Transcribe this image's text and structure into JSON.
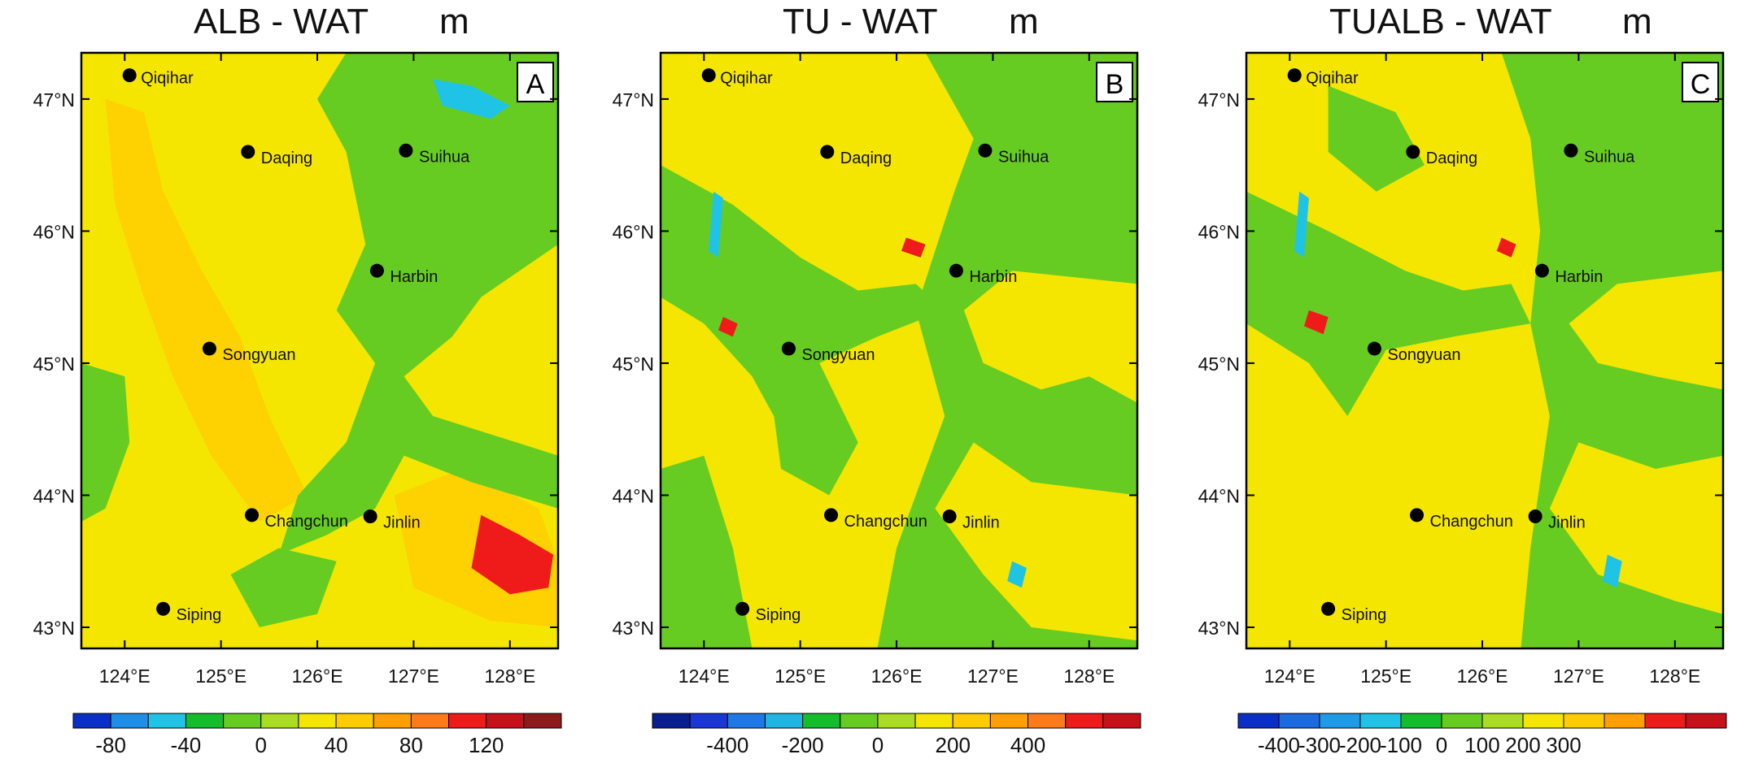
{
  "panels": [
    {
      "title": "ALB - WAT",
      "unit": "m",
      "letter": "A",
      "colorbar": {
        "colors": [
          "#0a2fc7",
          "#1e8ee6",
          "#1fc3e6",
          "#16bd2a",
          "#66cc22",
          "#aadd22",
          "#f5e600",
          "#ffcc00",
          "#ff9f00",
          "#ff7a1a",
          "#ef1a1a",
          "#c8101a",
          "#8e1b1b"
        ],
        "labels": [
          "-80",
          "-40",
          "0",
          "40",
          "80",
          "120"
        ],
        "label_slots": [
          1,
          3,
          5,
          7,
          9,
          11
        ]
      }
    },
    {
      "title": "TU - WAT",
      "unit": "m",
      "letter": "B",
      "colorbar": {
        "colors": [
          "#0a1f8f",
          "#1a36d6",
          "#1e78e6",
          "#1fb6e6",
          "#16bd2a",
          "#66cc22",
          "#aadd22",
          "#f5e600",
          "#ffcc00",
          "#ff9f00",
          "#ff7a1a",
          "#ef1a1a",
          "#c8101a"
        ],
        "labels": [
          "-400",
          "-200",
          "0",
          "200",
          "400"
        ],
        "label_slots": [
          2,
          4,
          6,
          8,
          10
        ]
      }
    },
    {
      "title": "TUALB - WAT",
      "unit": "m",
      "letter": "C",
      "colorbar": {
        "colors": [
          "#0a2fc7",
          "#1a6ae0",
          "#1e9ae6",
          "#1fc3e6",
          "#16bd2a",
          "#66cc22",
          "#aadd22",
          "#f5e600",
          "#ffcc00",
          "#ff9f00",
          "#ef1a1a",
          "#c8101a"
        ],
        "labels": [
          "-400",
          "-300",
          "-200",
          "-100",
          "0",
          "100",
          "200",
          "300"
        ],
        "label_slots": [
          1,
          2,
          3,
          4,
          5,
          6,
          7,
          8
        ]
      }
    }
  ],
  "lat_labels": [
    "47°N",
    "46°N",
    "45°N",
    "44°N",
    "43°N"
  ],
  "lon_labels": [
    "124°E",
    "125°E",
    "126°E",
    "127°E",
    "128°E"
  ],
  "cities": [
    "Qiqihar",
    "Daqing",
    "Suihua",
    "Harbin",
    "Songyuan",
    "Changchun",
    "Jinlin",
    "Siping"
  ]
}
